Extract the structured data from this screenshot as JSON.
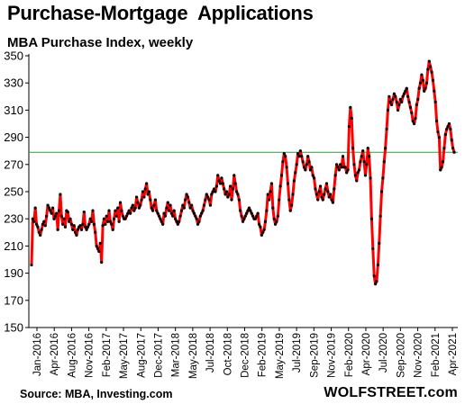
{
  "chart_data": {
    "type": "line",
    "title": "Purchase-Mortgage  Applications",
    "subtitle": "MBA Purchase Index, weekly",
    "xlabel": "",
    "ylabel": "",
    "ylim": [
      150,
      350
    ],
    "yticks": [
      150,
      170,
      190,
      210,
      230,
      250,
      270,
      290,
      310,
      330,
      350
    ],
    "xtick_labels": [
      "Jan-2016",
      "Apr-2016",
      "Aug-2016",
      "Nov-2016",
      "Feb-2017",
      "May-2017",
      "Aug-2017",
      "Dec-2017",
      "Mar-2018",
      "May-2018",
      "Jul-2018",
      "Oct-2018",
      "Dec-2018",
      "Feb-2019",
      "May-2019",
      "Jul-2019",
      "Sep-2019",
      "Nov-2019",
      "Feb-2020",
      "Apr-2020",
      "Jul-2020",
      "Sep-2020",
      "Nov-2020",
      "Feb-2021",
      "Apr-2021"
    ],
    "grid": false,
    "reference_line": 279,
    "series": [
      {
        "values": [
          196,
          230,
          228,
          238,
          226,
          224,
          220,
          218,
          222,
          226,
          228,
          225,
          232,
          240,
          238,
          236,
          234,
          238,
          230,
          232,
          234,
          222,
          236,
          248,
          232,
          226,
          230,
          224,
          236,
          235,
          228,
          230,
          226,
          222,
          225,
          220,
          218,
          222,
          224,
          225,
          222,
          226,
          235,
          224,
          222,
          224,
          226,
          230,
          228,
          236,
          226,
          220,
          210,
          208,
          206,
          212,
          198,
          225,
          230,
          226,
          232,
          228,
          236,
          228,
          226,
          222,
          230,
          236,
          232,
          238,
          228,
          242,
          236,
          232,
          230,
          230,
          232,
          234,
          236,
          234,
          238,
          240,
          236,
          238,
          246,
          242,
          238,
          240,
          244,
          250,
          246,
          252,
          256,
          248,
          250,
          244,
          238,
          236,
          240,
          244,
          236,
          234,
          232,
          230,
          228,
          226,
          234,
          232,
          238,
          242,
          236,
          240,
          234,
          232,
          236,
          230,
          228,
          226,
          228,
          232,
          236,
          240,
          238,
          244,
          248,
          246,
          242,
          238,
          240,
          236,
          234,
          232,
          230,
          226,
          228,
          232,
          234,
          236,
          240,
          244,
          248,
          246,
          244,
          240,
          248,
          250,
          252,
          250,
          254,
          262,
          258,
          256,
          260,
          256,
          252,
          248,
          250,
          246,
          248,
          254,
          244,
          252,
          262,
          256,
          250,
          248,
          244,
          236,
          232,
          228,
          230,
          232,
          234,
          236,
          238,
          236,
          234,
          232,
          230,
          230,
          232,
          234,
          226,
          224,
          218,
          220,
          222,
          228,
          236,
          248,
          244,
          250,
          256,
          238,
          230,
          226,
          228,
          232,
          244,
          254,
          262,
          272,
          278,
          276,
          268,
          256,
          244,
          236,
          240,
          248,
          258,
          264,
          270,
          278,
          276,
          280,
          276,
          272,
          268,
          266,
          270,
          276,
          272,
          266,
          268,
          262,
          260,
          252,
          248,
          244,
          250,
          254,
          246,
          244,
          248,
          252,
          256,
          250,
          246,
          248,
          244,
          242,
          252,
          262,
          270,
          268,
          266,
          270,
          268,
          276,
          268,
          268,
          264,
          266,
          298,
          312,
          304,
          282,
          270,
          262,
          258,
          264,
          266,
          272,
          276,
          280,
          272,
          262,
          270,
          282,
          276,
          260,
          230,
          208,
          188,
          182,
          184,
          196,
          212,
          232,
          250,
          260,
          272,
          282,
          296,
          310,
          320,
          316,
          314,
          318,
          322,
          320,
          316,
          310,
          314,
          318,
          316,
          320,
          322,
          324,
          326,
          320,
          316,
          312,
          308,
          302,
          300,
          304,
          314,
          318,
          326,
          330,
          336,
          332,
          324,
          326,
          330,
          340,
          346,
          342,
          338,
          332,
          324,
          316,
          302,
          294,
          290,
          266,
          268,
          272,
          282,
          292,
          296,
          298,
          300,
          296,
          288,
          282,
          279
        ]
      }
    ]
  },
  "footer": {
    "source": "Source: MBA, Investing.com",
    "brand": "WOLFSTREET.com"
  },
  "colors": {
    "line": "#ff0000",
    "markers": "#000000",
    "reference_line": "#2e9b3a"
  }
}
